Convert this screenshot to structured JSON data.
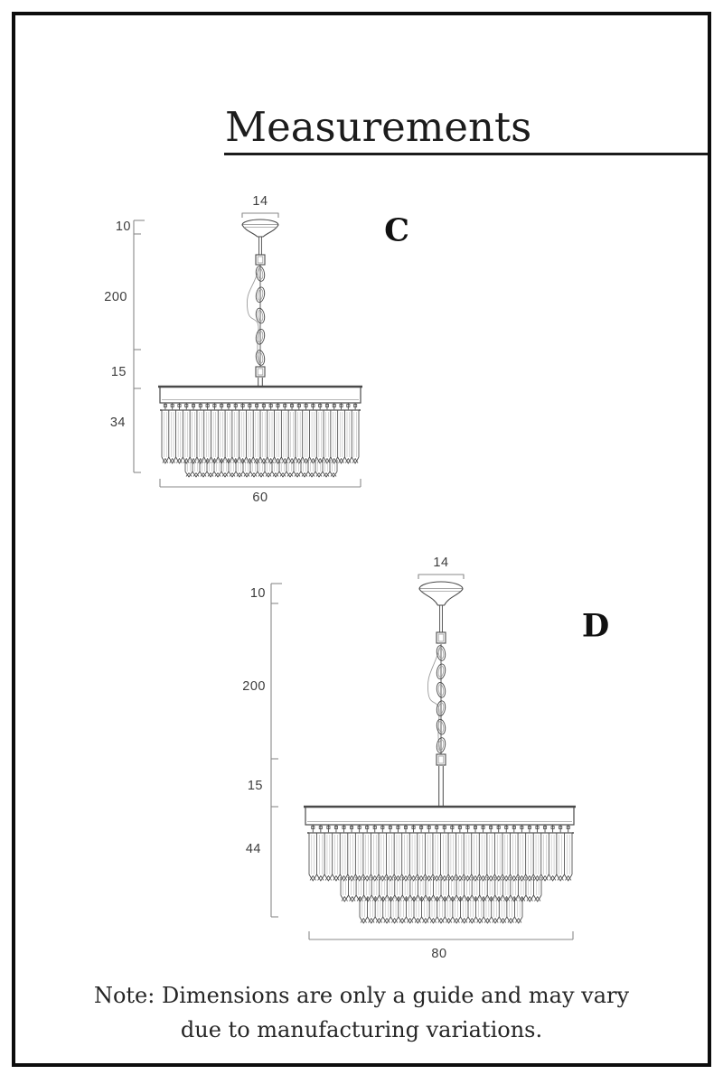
{
  "title": "Measurements",
  "note": {
    "line1": "Note: Dimensions are only a guide and may vary",
    "line2": "due to manufacturing variations."
  },
  "diagrams": [
    {
      "label": "C",
      "canopy_width": "14",
      "canopy_height": "10",
      "chain_length": "200",
      "frame_height": "15",
      "body_height": "34",
      "body_width": "60"
    },
    {
      "label": "D",
      "canopy_width": "14",
      "canopy_height": "10",
      "chain_length": "200",
      "frame_height": "15",
      "body_height": "44",
      "body_width": "80"
    }
  ],
  "colors": {
    "ink": "#4a4a4a",
    "light": "#9b9b9b",
    "dim_line": "#8a8a8a",
    "text": "#3d3d3d",
    "title": "#1c1c1c",
    "border": "#0d0d0d"
  }
}
